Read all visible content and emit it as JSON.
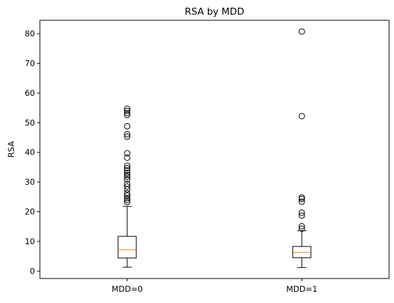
{
  "chart_data": {
    "type": "box",
    "title": "RSA by MDD",
    "xlabel": "",
    "ylabel": "RSA",
    "categories": [
      "MDD=0",
      "MDD=1"
    ],
    "ylim": [
      -2.5,
      84.5
    ],
    "yticks": [
      0,
      10,
      20,
      30,
      40,
      50,
      60,
      70,
      80
    ],
    "grid": false,
    "boxes": [
      {
        "category": "MDD=0",
        "whisker_low": 1.3,
        "q1": 4.4,
        "median": 7.2,
        "q3": 11.7,
        "whisker_high": 21.8,
        "outliers": [
          23.3,
          24.0,
          24.6,
          25.4,
          26.2,
          27.5,
          28.5,
          29.4,
          30.9,
          31.8,
          32.4,
          33.1,
          33.9,
          34.7,
          35.5,
          38.2,
          39.7,
          45.3,
          46.1,
          48.8,
          52.6,
          53.3,
          54.0,
          54.7
        ]
      },
      {
        "category": "MDD=1",
        "whisker_low": 1.2,
        "q1": 4.5,
        "median": 6.3,
        "q3": 8.3,
        "whisker_high": 13.6,
        "outliers": [
          14.3,
          15.1,
          18.7,
          19.7,
          23.4,
          24.3,
          24.8,
          52.2,
          80.7
        ]
      }
    ],
    "colors": {
      "box": "#000000",
      "median": "#ff7f0e",
      "outlier_edge": "#000000"
    }
  }
}
